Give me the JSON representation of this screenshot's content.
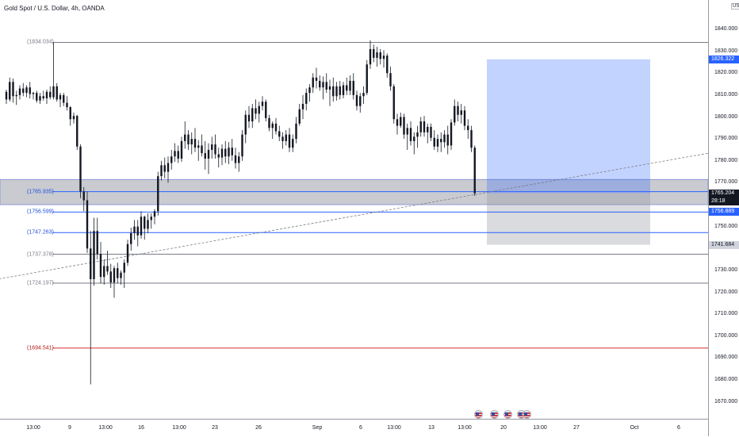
{
  "symbol": {
    "title": "Gold Spot / U.S. Dollar, 4h, OANDA",
    "currency": "USD"
  },
  "chart_data": {
    "type": "candlestick",
    "instrument": "Gold Spot / U.S. Dollar",
    "interval": "4h",
    "source": "OANDA",
    "ylim": [
      1664,
      1850
    ],
    "price_ticks": [
      "1840.000",
      "1830.000",
      "1820.000",
      "1810.000",
      "1800.000",
      "1790.000",
      "1780.000",
      "1770.000",
      "1760.000",
      "1750.000",
      "1740.000",
      "1730.000",
      "1720.000",
      "1710.000",
      "1700.000",
      "1690.000",
      "1680.000",
      "1670.000"
    ],
    "time_ticks": [
      "13:00",
      "9",
      "13:00",
      "16",
      "13:00",
      "23",
      "26",
      "Sep",
      "6",
      "13:00",
      "13",
      "13:00",
      "20",
      "13:00",
      "27",
      "Oct",
      "6"
    ],
    "levels": [
      {
        "name": "level-1834",
        "label": "(1834.034)",
        "price": 1834.034,
        "color": "#787b86",
        "style": "gray"
      },
      {
        "name": "level-1765",
        "label": "(1765.935)",
        "price": 1765.935,
        "color": "#2962ff",
        "style": "blue"
      },
      {
        "name": "level-1756",
        "label": "(1756.599)",
        "price": 1756.599,
        "color": "#2962ff",
        "style": "blue"
      },
      {
        "name": "level-1747",
        "label": "(1747.263)",
        "price": 1747.263,
        "color": "#2962ff",
        "style": "blue"
      },
      {
        "name": "level-1737",
        "label": "(1737.378)",
        "price": 1737.378,
        "color": "#787b86",
        "style": "gray"
      },
      {
        "name": "level-1724",
        "label": "(1724.197)",
        "price": 1724.197,
        "color": "#787b86",
        "style": "gray"
      },
      {
        "name": "level-1694",
        "label": "(1694.541)",
        "price": 1694.541,
        "color": "#d32f2f",
        "style": "red"
      }
    ],
    "support_zone": {
      "top": 1771.5,
      "bottom": 1760.0
    },
    "trendline": {
      "from": {
        "t": -8,
        "price": 1724.5
      },
      "to": {
        "t": 320,
        "price": 1814
      }
    },
    "position_tool": {
      "entry": 1765.204,
      "target": 1826.322,
      "stop": 1741.684
    },
    "price_labels": [
      {
        "value": "1826.322",
        "price": 1826.322,
        "bg": "#2962ff",
        "fg": "#ffffff"
      },
      {
        "value": "1765.204",
        "sub": "28:18",
        "price": 1765.204,
        "bg": "#131722",
        "fg": "#ffffff"
      },
      {
        "value": "1756.889",
        "price": 1756.889,
        "bg": "#2962ff",
        "fg": "#ffffff"
      },
      {
        "value": "1741.684",
        "price": 1741.684,
        "bg": "#d1d4dc",
        "fg": "#131722"
      }
    ],
    "candles": [
      [
        1811.5,
        1812.5,
        1806.0,
        1808.0
      ],
      [
        1808.0,
        1818.0,
        1807.0,
        1816.0
      ],
      [
        1816.0,
        1817.5,
        1806.5,
        1809.5
      ],
      [
        1809.5,
        1812.0,
        1805.5,
        1810.0
      ],
      [
        1810.0,
        1814.5,
        1808.0,
        1813.0
      ],
      [
        1813.0,
        1815.5,
        1809.5,
        1811.0
      ],
      [
        1811.0,
        1814.5,
        1809.0,
        1813.5
      ],
      [
        1813.5,
        1816.0,
        1808.5,
        1810.5
      ],
      [
        1810.5,
        1811.5,
        1808.0,
        1811.0
      ],
      [
        1811.0,
        1812.0,
        1806.5,
        1807.5
      ],
      [
        1807.5,
        1811.0,
        1806.0,
        1809.5
      ],
      [
        1809.5,
        1812.0,
        1807.5,
        1808.5
      ],
      [
        1808.5,
        1812.5,
        1806.0,
        1811.5
      ],
      [
        1811.5,
        1814.0,
        1808.0,
        1809.0
      ],
      [
        1809.0,
        1834.0,
        1808.0,
        1814.0
      ],
      [
        1814.0,
        1815.5,
        1807.0,
        1808.0
      ],
      [
        1808.0,
        1811.0,
        1804.5,
        1810.0
      ],
      [
        1810.0,
        1811.0,
        1805.0,
        1806.5
      ],
      [
        1806.5,
        1809.5,
        1803.0,
        1804.5
      ],
      [
        1804.5,
        1805.0,
        1796.0,
        1799.0
      ],
      [
        1799.0,
        1802.0,
        1797.0,
        1800.5
      ],
      [
        1800.5,
        1801.0,
        1785.0,
        1786.5
      ],
      [
        1786.5,
        1787.5,
        1763.0,
        1766.0
      ],
      [
        1766.0,
        1768.0,
        1757.0,
        1762.0
      ],
      [
        1762.0,
        1766.0,
        1738.0,
        1740.0
      ],
      [
        1740.0,
        1748.0,
        1678.0,
        1726.0
      ],
      [
        1726.0,
        1754.0,
        1723.0,
        1748.0
      ],
      [
        1748.0,
        1754.0,
        1735.0,
        1737.5
      ],
      [
        1737.5,
        1743.0,
        1724.0,
        1727.0
      ],
      [
        1727.0,
        1735.0,
        1723.5,
        1732.0
      ],
      [
        1732.0,
        1739.0,
        1728.0,
        1729.5
      ],
      [
        1729.5,
        1733.0,
        1722.0,
        1724.5
      ],
      [
        1724.5,
        1732.0,
        1717.5,
        1731.0
      ],
      [
        1731.0,
        1733.5,
        1724.0,
        1726.5
      ],
      [
        1726.5,
        1730.0,
        1723.5,
        1729.0
      ],
      [
        1729.0,
        1735.0,
        1722.0,
        1733.5
      ],
      [
        1733.5,
        1744.0,
        1732.0,
        1742.0
      ],
      [
        1742.0,
        1749.5,
        1739.0,
        1747.0
      ],
      [
        1747.0,
        1753.0,
        1744.0,
        1750.0
      ],
      [
        1750.0,
        1753.0,
        1741.0,
        1746.0
      ],
      [
        1746.0,
        1757.0,
        1744.5,
        1754.5
      ],
      [
        1754.5,
        1755.0,
        1744.0,
        1749.0
      ],
      [
        1749.0,
        1756.0,
        1747.0,
        1753.0
      ],
      [
        1753.0,
        1756.0,
        1749.0,
        1754.5
      ],
      [
        1754.5,
        1758.0,
        1751.0,
        1757.0
      ],
      [
        1757.0,
        1775.0,
        1755.0,
        1773.0
      ],
      [
        1773.0,
        1780.0,
        1771.0,
        1778.0
      ],
      [
        1778.0,
        1781.5,
        1772.0,
        1775.0
      ],
      [
        1775.0,
        1782.0,
        1770.0,
        1779.0
      ],
      [
        1779.0,
        1785.0,
        1776.0,
        1782.0
      ],
      [
        1782.0,
        1788.0,
        1779.5,
        1784.5
      ],
      [
        1784.5,
        1787.0,
        1779.0,
        1781.0
      ],
      [
        1781.0,
        1791.0,
        1779.5,
        1789.0
      ],
      [
        1789.0,
        1798.0,
        1785.5,
        1792.0
      ],
      [
        1792.0,
        1794.0,
        1785.0,
        1787.5
      ],
      [
        1787.5,
        1793.0,
        1783.0,
        1790.0
      ],
      [
        1790.0,
        1795.0,
        1784.0,
        1786.0
      ],
      [
        1786.0,
        1789.5,
        1780.0,
        1787.0
      ],
      [
        1787.0,
        1792.0,
        1782.0,
        1783.5
      ],
      [
        1783.5,
        1789.0,
        1776.0,
        1781.0
      ],
      [
        1781.0,
        1788.0,
        1774.0,
        1785.0
      ],
      [
        1785.0,
        1791.0,
        1781.0,
        1787.5
      ],
      [
        1787.5,
        1792.0,
        1781.0,
        1783.0
      ],
      [
        1783.0,
        1786.0,
        1777.0,
        1781.5
      ],
      [
        1781.5,
        1787.5,
        1778.0,
        1785.5
      ],
      [
        1785.5,
        1789.0,
        1779.0,
        1782.0
      ],
      [
        1782.0,
        1788.5,
        1778.5,
        1786.0
      ],
      [
        1786.0,
        1790.0,
        1780.0,
        1782.5
      ],
      [
        1782.5,
        1786.0,
        1776.5,
        1779.0
      ],
      [
        1779.0,
        1784.0,
        1775.0,
        1782.0
      ],
      [
        1782.0,
        1794.0,
        1780.0,
        1792.0
      ],
      [
        1792.0,
        1803.0,
        1788.0,
        1801.0
      ],
      [
        1801.0,
        1805.0,
        1795.0,
        1798.0
      ],
      [
        1798.0,
        1806.0,
        1795.0,
        1804.0
      ],
      [
        1804.0,
        1808.0,
        1799.0,
        1801.5
      ],
      [
        1801.5,
        1807.0,
        1797.5,
        1805.0
      ],
      [
        1805.0,
        1809.5,
        1803.0,
        1807.0
      ],
      [
        1807.0,
        1808.0,
        1798.0,
        1799.5
      ],
      [
        1799.5,
        1801.0,
        1793.5,
        1795.0
      ],
      [
        1795.0,
        1798.0,
        1790.0,
        1797.0
      ],
      [
        1797.0,
        1799.5,
        1792.0,
        1793.5
      ],
      [
        1793.5,
        1796.0,
        1789.0,
        1791.0
      ],
      [
        1791.0,
        1793.0,
        1785.5,
        1789.0
      ],
      [
        1789.0,
        1794.0,
        1787.0,
        1792.0
      ],
      [
        1792.0,
        1795.0,
        1784.0,
        1786.0
      ],
      [
        1786.0,
        1792.0,
        1784.0,
        1790.0
      ],
      [
        1790.0,
        1800.0,
        1788.0,
        1797.0
      ],
      [
        1797.0,
        1806.0,
        1796.0,
        1803.5
      ],
      [
        1803.5,
        1810.0,
        1799.0,
        1806.0
      ],
      [
        1806.0,
        1813.0,
        1803.0,
        1811.0
      ],
      [
        1811.0,
        1815.0,
        1807.0,
        1813.5
      ],
      [
        1813.5,
        1820.0,
        1811.0,
        1818.0
      ],
      [
        1818.0,
        1822.5,
        1813.0,
        1816.5
      ],
      [
        1816.5,
        1819.0,
        1812.0,
        1813.5
      ],
      [
        1813.5,
        1818.5,
        1808.0,
        1816.0
      ],
      [
        1816.0,
        1820.0,
        1811.0,
        1812.5
      ],
      [
        1812.5,
        1817.0,
        1805.0,
        1814.0
      ],
      [
        1814.0,
        1818.0,
        1807.0,
        1809.5
      ],
      [
        1809.5,
        1816.0,
        1807.5,
        1814.0
      ],
      [
        1814.0,
        1816.5,
        1808.0,
        1810.0
      ],
      [
        1810.0,
        1816.0,
        1808.5,
        1814.5
      ],
      [
        1814.5,
        1818.0,
        1810.0,
        1812.0
      ],
      [
        1812.0,
        1819.0,
        1810.0,
        1816.5
      ],
      [
        1816.5,
        1820.0,
        1808.0,
        1810.0
      ],
      [
        1810.0,
        1812.0,
        1803.0,
        1805.0
      ],
      [
        1805.0,
        1811.0,
        1802.0,
        1809.5
      ],
      [
        1809.5,
        1814.0,
        1806.0,
        1811.0
      ],
      [
        1811.0,
        1826.0,
        1810.0,
        1824.0
      ],
      [
        1824.0,
        1835.0,
        1822.0,
        1831.0
      ],
      [
        1831.0,
        1833.0,
        1825.0,
        1827.0
      ],
      [
        1827.0,
        1832.0,
        1823.0,
        1829.5
      ],
      [
        1829.5,
        1831.0,
        1824.0,
        1826.5
      ],
      [
        1826.5,
        1830.5,
        1822.5,
        1828.0
      ],
      [
        1828.0,
        1829.0,
        1818.0,
        1820.0
      ],
      [
        1820.0,
        1823.0,
        1812.0,
        1814.0
      ],
      [
        1814.0,
        1815.0,
        1797.0,
        1799.0
      ],
      [
        1799.0,
        1801.5,
        1792.0,
        1796.0
      ],
      [
        1796.0,
        1802.0,
        1795.0,
        1800.0
      ],
      [
        1800.0,
        1801.5,
        1790.0,
        1792.0
      ],
      [
        1792.0,
        1797.0,
        1785.0,
        1795.0
      ],
      [
        1795.0,
        1798.0,
        1787.0,
        1789.0
      ],
      [
        1789.0,
        1793.0,
        1783.0,
        1791.0
      ],
      [
        1791.0,
        1796.0,
        1786.0,
        1793.0
      ],
      [
        1793.0,
        1800.0,
        1791.0,
        1798.0
      ],
      [
        1798.0,
        1800.5,
        1791.0,
        1793.0
      ],
      [
        1793.0,
        1797.0,
        1788.0,
        1795.5
      ],
      [
        1795.5,
        1797.0,
        1789.0,
        1790.5
      ],
      [
        1790.5,
        1794.0,
        1785.0,
        1786.5
      ],
      [
        1786.5,
        1792.0,
        1784.0,
        1790.0
      ],
      [
        1790.0,
        1793.0,
        1784.0,
        1788.5
      ],
      [
        1788.5,
        1794.0,
        1786.0,
        1792.0
      ],
      [
        1792.0,
        1796.0,
        1783.0,
        1787.0
      ],
      [
        1787.0,
        1799.0,
        1785.0,
        1797.5
      ],
      [
        1797.5,
        1808.0,
        1796.0,
        1805.0
      ],
      [
        1805.0,
        1807.0,
        1798.0,
        1801.0
      ],
      [
        1801.0,
        1806.0,
        1797.0,
        1803.0
      ],
      [
        1803.0,
        1805.0,
        1794.0,
        1796.0
      ],
      [
        1796.0,
        1799.0,
        1790.0,
        1794.0
      ],
      [
        1794.0,
        1796.0,
        1784.0,
        1786.0
      ],
      [
        1786.0,
        1787.0,
        1764.0,
        1765.2
      ]
    ]
  },
  "events_count": 5
}
